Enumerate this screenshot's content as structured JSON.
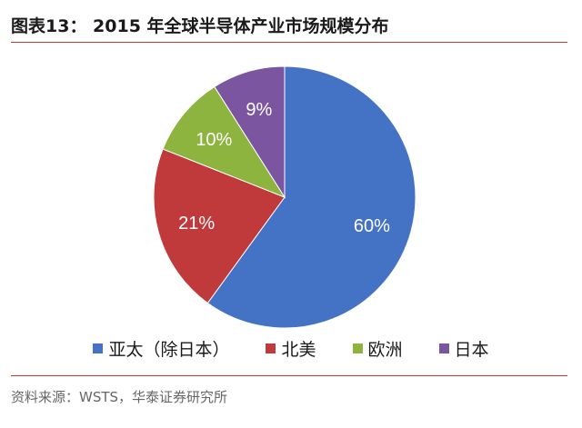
{
  "header": {
    "title": "图表13：   2015 年全球半导体产业市场规模分布"
  },
  "footer": {
    "source": "资料来源：WSTS，华泰证券研究所"
  },
  "chart_data": {
    "type": "pie",
    "title": "图表13：   2015 年全球半导体产业市场规模分布",
    "start_angle_deg": 0,
    "direction": "clockwise",
    "legend_position": "bottom",
    "slices": [
      {
        "label": "亚太（除日本）",
        "value": 60,
        "display": "60%",
        "color": "#4472c4"
      },
      {
        "label": "北美",
        "value": 21,
        "display": "21%",
        "color": "#c0393b"
      },
      {
        "label": "欧洲",
        "value": 10,
        "display": "10%",
        "color": "#8db43e"
      },
      {
        "label": "日本",
        "value": 9,
        "display": "9%",
        "color": "#7b55a0"
      }
    ]
  }
}
